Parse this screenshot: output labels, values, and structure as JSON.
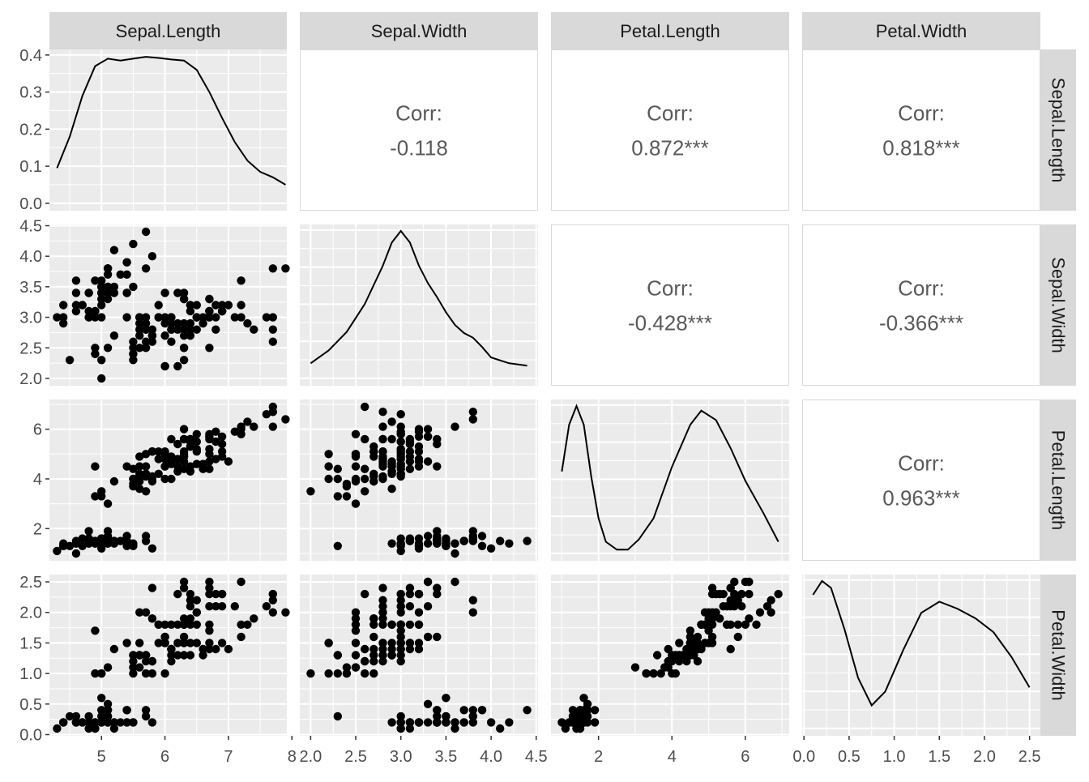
{
  "chart_data": {
    "type": "scatter",
    "variables": [
      "Sepal.Length",
      "Sepal.Width",
      "Petal.Length",
      "Petal.Width"
    ],
    "strip_labels": {
      "columns": [
        "Sepal.Length",
        "Sepal.Width",
        "Petal.Length",
        "Petal.Width"
      ],
      "rows": [
        "Sepal.Length",
        "Sepal.Width",
        "Petal.Length",
        "Petal.Width"
      ]
    },
    "ranges": {
      "Sepal.Length": [
        4.18,
        7.92
      ],
      "Sepal.Width": [
        1.88,
        4.52
      ],
      "Petal.Length": [
        0.705,
        7.195
      ],
      "Petal.Width": [
        -0.02,
        2.62
      ],
      "density_y": [
        -0.02,
        0.415
      ]
    },
    "ticks": {
      "Sepal.Length": {
        "values": [
          5,
          6,
          7,
          8
        ],
        "labels": [
          "5",
          "6",
          "7",
          "8"
        ]
      },
      "Sepal.Width": {
        "values": [
          2.0,
          2.5,
          3.0,
          3.5,
          4.0,
          4.5
        ],
        "labels": [
          "2.0",
          "2.5",
          "3.0",
          "3.5",
          "4.0",
          "4.5"
        ]
      },
      "Petal.Length": {
        "values": [
          2,
          4,
          6
        ],
        "labels": [
          "2",
          "4",
          "6"
        ]
      },
      "Petal.Width": {
        "values": [
          0.0,
          0.5,
          1.0,
          1.5,
          2.0,
          2.5
        ],
        "labels": [
          "0.0",
          "0.5",
          "1.0",
          "1.5",
          "2.0",
          "2.5"
        ]
      },
      "density_y": {
        "values": [
          0.0,
          0.1,
          0.2,
          0.3,
          0.4
        ],
        "labels": [
          "0.0",
          "0.1",
          "0.2",
          "0.3",
          "0.4"
        ]
      }
    },
    "correlations": [
      {
        "row": 0,
        "col": 1,
        "label": "Corr:",
        "value": "-0.118"
      },
      {
        "row": 0,
        "col": 2,
        "label": "Corr:",
        "value": "0.872***"
      },
      {
        "row": 0,
        "col": 3,
        "label": "Corr:",
        "value": "0.818***"
      },
      {
        "row": 1,
        "col": 2,
        "label": "Corr:",
        "value": "-0.428***"
      },
      {
        "row": 1,
        "col": 3,
        "label": "Corr:",
        "value": "-0.366***"
      },
      {
        "row": 2,
        "col": 3,
        "label": "Corr:",
        "value": "0.963***"
      }
    ],
    "densities": {
      "Sepal.Length": [
        [
          4.3,
          0.095
        ],
        [
          4.5,
          0.18
        ],
        [
          4.7,
          0.29
        ],
        [
          4.9,
          0.37
        ],
        [
          5.1,
          0.39
        ],
        [
          5.3,
          0.385
        ],
        [
          5.5,
          0.39
        ],
        [
          5.7,
          0.395
        ],
        [
          5.9,
          0.392
        ],
        [
          6.1,
          0.388
        ],
        [
          6.3,
          0.385
        ],
        [
          6.5,
          0.36
        ],
        [
          6.7,
          0.3
        ],
        [
          6.9,
          0.23
        ],
        [
          7.1,
          0.165
        ],
        [
          7.3,
          0.115
        ],
        [
          7.5,
          0.085
        ],
        [
          7.7,
          0.07
        ],
        [
          7.9,
          0.05
        ]
      ],
      "Sepal.Width": [
        [
          2.0,
          0.11
        ],
        [
          2.2,
          0.22
        ],
        [
          2.4,
          0.38
        ],
        [
          2.6,
          0.62
        ],
        [
          2.8,
          0.95
        ],
        [
          2.9,
          1.15
        ],
        [
          3.0,
          1.25
        ],
        [
          3.1,
          1.15
        ],
        [
          3.2,
          0.95
        ],
        [
          3.3,
          0.8
        ],
        [
          3.4,
          0.68
        ],
        [
          3.5,
          0.55
        ],
        [
          3.6,
          0.44
        ],
        [
          3.7,
          0.37
        ],
        [
          3.8,
          0.33
        ],
        [
          3.9,
          0.25
        ],
        [
          4.0,
          0.16
        ],
        [
          4.2,
          0.11
        ],
        [
          4.4,
          0.09
        ]
      ],
      "Petal.Length": [
        [
          1.0,
          0.17
        ],
        [
          1.2,
          0.27
        ],
        [
          1.4,
          0.31
        ],
        [
          1.6,
          0.27
        ],
        [
          1.8,
          0.16
        ],
        [
          2.0,
          0.07
        ],
        [
          2.2,
          0.02
        ],
        [
          2.5,
          0.003
        ],
        [
          2.8,
          0.003
        ],
        [
          3.1,
          0.025
        ],
        [
          3.5,
          0.07
        ],
        [
          4.0,
          0.18
        ],
        [
          4.5,
          0.27
        ],
        [
          4.8,
          0.3
        ],
        [
          5.2,
          0.28
        ],
        [
          5.6,
          0.22
        ],
        [
          6.0,
          0.15
        ],
        [
          6.5,
          0.08
        ],
        [
          6.9,
          0.02
        ]
      ],
      "Petal.Width": [
        [
          0.1,
          0.95
        ],
        [
          0.2,
          1.05
        ],
        [
          0.3,
          1.0
        ],
        [
          0.45,
          0.7
        ],
        [
          0.6,
          0.35
        ],
        [
          0.75,
          0.15
        ],
        [
          0.9,
          0.25
        ],
        [
          1.1,
          0.55
        ],
        [
          1.3,
          0.82
        ],
        [
          1.5,
          0.9
        ],
        [
          1.7,
          0.85
        ],
        [
          1.9,
          0.78
        ],
        [
          2.1,
          0.68
        ],
        [
          2.3,
          0.5
        ],
        [
          2.5,
          0.28
        ]
      ]
    },
    "points": [
      [
        5.1,
        3.5,
        1.4,
        0.2
      ],
      [
        4.9,
        3.0,
        1.4,
        0.2
      ],
      [
        4.7,
        3.2,
        1.3,
        0.2
      ],
      [
        4.6,
        3.1,
        1.5,
        0.2
      ],
      [
        5.0,
        3.6,
        1.4,
        0.2
      ],
      [
        5.4,
        3.9,
        1.7,
        0.4
      ],
      [
        4.6,
        3.4,
        1.4,
        0.3
      ],
      [
        5.0,
        3.4,
        1.5,
        0.2
      ],
      [
        4.4,
        2.9,
        1.4,
        0.2
      ],
      [
        4.9,
        3.1,
        1.5,
        0.1
      ],
      [
        5.4,
        3.7,
        1.5,
        0.2
      ],
      [
        4.8,
        3.4,
        1.6,
        0.2
      ],
      [
        4.8,
        3.0,
        1.4,
        0.1
      ],
      [
        4.3,
        3.0,
        1.1,
        0.1
      ],
      [
        5.8,
        4.0,
        1.2,
        0.2
      ],
      [
        5.7,
        4.4,
        1.5,
        0.4
      ],
      [
        5.4,
        3.9,
        1.3,
        0.4
      ],
      [
        5.1,
        3.5,
        1.4,
        0.3
      ],
      [
        5.7,
        3.8,
        1.7,
        0.3
      ],
      [
        5.1,
        3.8,
        1.5,
        0.3
      ],
      [
        5.4,
        3.4,
        1.7,
        0.2
      ],
      [
        5.1,
        3.7,
        1.5,
        0.4
      ],
      [
        4.6,
        3.6,
        1.0,
        0.2
      ],
      [
        5.1,
        3.3,
        1.7,
        0.5
      ],
      [
        4.8,
        3.4,
        1.9,
        0.2
      ],
      [
        5.0,
        3.0,
        1.6,
        0.2
      ],
      [
        5.0,
        3.4,
        1.6,
        0.4
      ],
      [
        5.2,
        3.5,
        1.5,
        0.2
      ],
      [
        5.2,
        3.4,
        1.4,
        0.2
      ],
      [
        4.7,
        3.2,
        1.6,
        0.2
      ],
      [
        4.8,
        3.1,
        1.6,
        0.2
      ],
      [
        5.4,
        3.4,
        1.5,
        0.4
      ],
      [
        5.2,
        4.1,
        1.5,
        0.1
      ],
      [
        5.5,
        4.2,
        1.4,
        0.2
      ],
      [
        4.9,
        3.1,
        1.5,
        0.2
      ],
      [
        5.0,
        3.2,
        1.2,
        0.2
      ],
      [
        5.5,
        3.5,
        1.3,
        0.2
      ],
      [
        4.9,
        3.6,
        1.4,
        0.1
      ],
      [
        4.4,
        3.0,
        1.3,
        0.2
      ],
      [
        5.1,
        3.4,
        1.5,
        0.2
      ],
      [
        5.0,
        3.5,
        1.3,
        0.3
      ],
      [
        4.5,
        2.3,
        1.3,
        0.3
      ],
      [
        4.4,
        3.2,
        1.3,
        0.2
      ],
      [
        5.0,
        3.5,
        1.6,
        0.6
      ],
      [
        5.1,
        3.8,
        1.9,
        0.4
      ],
      [
        4.8,
        3.0,
        1.4,
        0.3
      ],
      [
        5.1,
        3.8,
        1.6,
        0.2
      ],
      [
        4.6,
        3.2,
        1.4,
        0.2
      ],
      [
        5.3,
        3.7,
        1.5,
        0.2
      ],
      [
        5.0,
        3.3,
        1.4,
        0.2
      ],
      [
        7.0,
        3.2,
        4.7,
        1.4
      ],
      [
        6.4,
        3.2,
        4.5,
        1.5
      ],
      [
        6.9,
        3.1,
        4.9,
        1.5
      ],
      [
        5.5,
        2.3,
        4.0,
        1.3
      ],
      [
        6.5,
        2.8,
        4.6,
        1.5
      ],
      [
        5.7,
        2.8,
        4.5,
        1.3
      ],
      [
        6.3,
        3.3,
        4.7,
        1.6
      ],
      [
        4.9,
        2.4,
        3.3,
        1.0
      ],
      [
        6.6,
        2.9,
        4.6,
        1.3
      ],
      [
        5.2,
        2.7,
        3.9,
        1.4
      ],
      [
        5.0,
        2.0,
        3.5,
        1.0
      ],
      [
        5.9,
        3.0,
        4.2,
        1.5
      ],
      [
        6.0,
        2.2,
        4.0,
        1.0
      ],
      [
        6.1,
        2.9,
        4.7,
        1.4
      ],
      [
        5.6,
        2.9,
        3.6,
        1.3
      ],
      [
        6.7,
        3.1,
        4.4,
        1.4
      ],
      [
        5.6,
        3.0,
        4.5,
        1.5
      ],
      [
        5.8,
        2.7,
        4.1,
        1.0
      ],
      [
        6.2,
        2.2,
        4.5,
        1.5
      ],
      [
        5.6,
        2.5,
        3.9,
        1.1
      ],
      [
        5.9,
        3.2,
        4.8,
        1.8
      ],
      [
        6.1,
        2.8,
        4.0,
        1.3
      ],
      [
        6.3,
        2.5,
        4.9,
        1.5
      ],
      [
        6.1,
        2.8,
        4.7,
        1.2
      ],
      [
        6.4,
        2.9,
        4.3,
        1.3
      ],
      [
        6.6,
        3.0,
        4.4,
        1.4
      ],
      [
        6.8,
        2.8,
        4.8,
        1.4
      ],
      [
        6.7,
        3.0,
        5.0,
        1.7
      ],
      [
        6.0,
        2.9,
        4.5,
        1.5
      ],
      [
        5.7,
        2.6,
        3.5,
        1.0
      ],
      [
        5.5,
        2.4,
        3.8,
        1.1
      ],
      [
        5.5,
        2.4,
        3.7,
        1.0
      ],
      [
        5.8,
        2.7,
        3.9,
        1.2
      ],
      [
        6.0,
        2.7,
        5.1,
        1.6
      ],
      [
        5.4,
        3.0,
        4.5,
        1.5
      ],
      [
        6.0,
        3.4,
        4.5,
        1.6
      ],
      [
        6.7,
        3.1,
        4.7,
        1.5
      ],
      [
        6.3,
        2.3,
        4.4,
        1.3
      ],
      [
        5.6,
        3.0,
        4.1,
        1.3
      ],
      [
        5.5,
        2.5,
        4.0,
        1.3
      ],
      [
        5.5,
        2.6,
        4.4,
        1.2
      ],
      [
        6.1,
        3.0,
        4.6,
        1.4
      ],
      [
        5.8,
        2.6,
        4.0,
        1.2
      ],
      [
        5.0,
        2.3,
        3.3,
        1.0
      ],
      [
        5.6,
        2.7,
        4.2,
        1.3
      ],
      [
        5.7,
        3.0,
        4.2,
        1.2
      ],
      [
        5.7,
        2.9,
        4.2,
        1.3
      ],
      [
        6.2,
        2.9,
        4.3,
        1.3
      ],
      [
        5.1,
        2.5,
        3.0,
        1.1
      ],
      [
        5.7,
        2.8,
        4.1,
        1.3
      ],
      [
        6.3,
        3.3,
        6.0,
        2.5
      ],
      [
        5.8,
        2.7,
        5.1,
        1.9
      ],
      [
        7.1,
        3.0,
        5.9,
        2.1
      ],
      [
        6.3,
        2.9,
        5.6,
        1.8
      ],
      [
        6.5,
        3.0,
        5.8,
        2.2
      ],
      [
        7.6,
        3.0,
        6.6,
        2.1
      ],
      [
        4.9,
        2.5,
        4.5,
        1.7
      ],
      [
        7.3,
        2.9,
        6.3,
        1.8
      ],
      [
        6.7,
        2.5,
        5.8,
        1.8
      ],
      [
        7.2,
        3.6,
        6.1,
        2.5
      ],
      [
        6.5,
        3.2,
        5.1,
        2.0
      ],
      [
        6.4,
        2.7,
        5.3,
        1.9
      ],
      [
        6.8,
        3.0,
        5.5,
        2.1
      ],
      [
        5.7,
        2.5,
        5.0,
        2.0
      ],
      [
        5.8,
        2.8,
        5.1,
        2.4
      ],
      [
        6.4,
        3.2,
        5.3,
        2.3
      ],
      [
        6.5,
        3.0,
        5.5,
        1.8
      ],
      [
        7.7,
        3.8,
        6.7,
        2.2
      ],
      [
        7.7,
        2.6,
        6.9,
        2.3
      ],
      [
        6.0,
        2.2,
        5.0,
        1.5
      ],
      [
        6.9,
        3.2,
        5.7,
        2.3
      ],
      [
        5.6,
        2.8,
        4.9,
        2.0
      ],
      [
        7.7,
        2.8,
        6.7,
        2.0
      ],
      [
        6.3,
        2.7,
        4.9,
        1.8
      ],
      [
        6.7,
        3.3,
        5.7,
        2.1
      ],
      [
        7.2,
        3.2,
        6.0,
        1.8
      ],
      [
        6.2,
        2.8,
        4.8,
        1.8
      ],
      [
        6.1,
        3.0,
        4.9,
        1.8
      ],
      [
        6.4,
        2.8,
        5.6,
        2.1
      ],
      [
        7.2,
        3.0,
        5.8,
        1.6
      ],
      [
        7.4,
        2.8,
        6.1,
        1.9
      ],
      [
        7.9,
        3.8,
        6.4,
        2.0
      ],
      [
        6.4,
        2.8,
        5.6,
        2.2
      ],
      [
        6.3,
        2.8,
        5.1,
        1.5
      ],
      [
        6.1,
        2.6,
        5.6,
        1.4
      ],
      [
        7.7,
        3.0,
        6.1,
        2.3
      ],
      [
        6.3,
        3.4,
        5.6,
        2.4
      ],
      [
        6.4,
        3.1,
        5.5,
        1.8
      ],
      [
        6.0,
        3.0,
        4.8,
        1.8
      ],
      [
        6.9,
        3.1,
        5.4,
        2.1
      ],
      [
        6.7,
        3.1,
        5.6,
        2.4
      ],
      [
        6.9,
        3.1,
        5.1,
        2.3
      ],
      [
        5.8,
        2.7,
        5.1,
        1.9
      ],
      [
        6.8,
        3.2,
        5.9,
        2.3
      ],
      [
        6.7,
        3.3,
        5.7,
        2.5
      ],
      [
        6.7,
        3.0,
        5.2,
        2.3
      ],
      [
        6.3,
        2.5,
        5.0,
        1.9
      ],
      [
        6.5,
        3.0,
        5.2,
        2.0
      ],
      [
        6.2,
        3.4,
        5.4,
        2.3
      ],
      [
        5.9,
        3.0,
        5.1,
        1.8
      ]
    ]
  }
}
